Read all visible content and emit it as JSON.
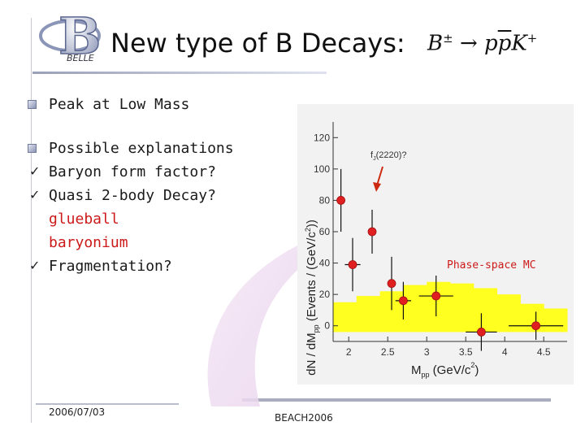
{
  "slide": {
    "title": "New type of B Decays:",
    "formula": {
      "base": "B",
      "charge": "±",
      "arrow": "→",
      "p": "p",
      "pbar": "p",
      "k": "K",
      "k_charge": "+"
    },
    "logo": {
      "letter": "B",
      "text": "BELLE"
    }
  },
  "bullets": {
    "peak": "Peak at Low Mass",
    "possible": "Possible explanations",
    "baryon": "Baryon form factor?",
    "quasi": "Quasi 2-body Decay?",
    "glueball": "glueball",
    "baryonium": "baryonium",
    "fragmentation": "Fragmentation?"
  },
  "footer": {
    "date": "2006/07/03",
    "conference": "BEACH2006"
  },
  "icons": {
    "bullet": "square-bullet-icon",
    "check": "checkmark-icon"
  },
  "colors": {
    "data_points": "#e02020",
    "mc_fill": "#ffff20",
    "highlight_text": "#cc1a1a"
  },
  "chart_data": {
    "type": "scatter",
    "ylabel_parts": {
      "a": "dN / dM",
      "sub": "pp",
      "b": "  (Events / (GeV/c",
      "sup": "2",
      "c": "))"
    },
    "xlabel_parts": {
      "a": "M",
      "sub": "pp",
      "b": "  (GeV/c",
      "sup": "2",
      "c": ")"
    },
    "annotations": {
      "peak": "f",
      "peak_sub": "J",
      "peak_rest": "(2220)?",
      "mc": "Phase-space MC"
    },
    "xlim": [
      1.8,
      4.8
    ],
    "ylim": [
      -10,
      130
    ],
    "xticks": [
      2,
      2.5,
      3,
      3.5,
      4,
      4.5
    ],
    "xtick_labels": [
      "2",
      "2.5",
      "3",
      "3.5",
      "4",
      "4.5"
    ],
    "yticks": [
      0,
      20,
      40,
      60,
      80,
      100,
      120
    ],
    "ytick_labels": [
      "0",
      "20",
      "40",
      "60",
      "80",
      "100",
      "120"
    ],
    "points": [
      {
        "x": 1.9,
        "y": 80,
        "xerr": 0.05,
        "yerr": 20
      },
      {
        "x": 2.05,
        "y": 39,
        "xerr": 0.1,
        "yerr": 17
      },
      {
        "x": 2.3,
        "y": 60,
        "xerr": 0.05,
        "yerr": 14
      },
      {
        "x": 2.55,
        "y": 27,
        "xerr": 0.05,
        "yerr": 17
      },
      {
        "x": 2.7,
        "y": 16,
        "xerr": 0.1,
        "yerr": 12
      },
      {
        "x": 3.12,
        "y": 19,
        "xerr": 0.22,
        "yerr": 13
      },
      {
        "x": 3.7,
        "y": -4,
        "xerr": 0.2,
        "yerr": 12
      },
      {
        "x": 4.4,
        "y": 0,
        "xerr": 0.35,
        "yerr": 9
      }
    ],
    "mc_histogram": {
      "edges": [
        1.8,
        2.1,
        2.4,
        2.7,
        3.0,
        3.3,
        3.6,
        3.9,
        4.2,
        4.5,
        4.8
      ],
      "lower": [
        -4,
        -4,
        -4,
        -4,
        -4,
        -4,
        -4,
        -4,
        -4,
        -4
      ],
      "upper": [
        15,
        19,
        22,
        26,
        28,
        27,
        24,
        20,
        14,
        11
      ]
    }
  }
}
